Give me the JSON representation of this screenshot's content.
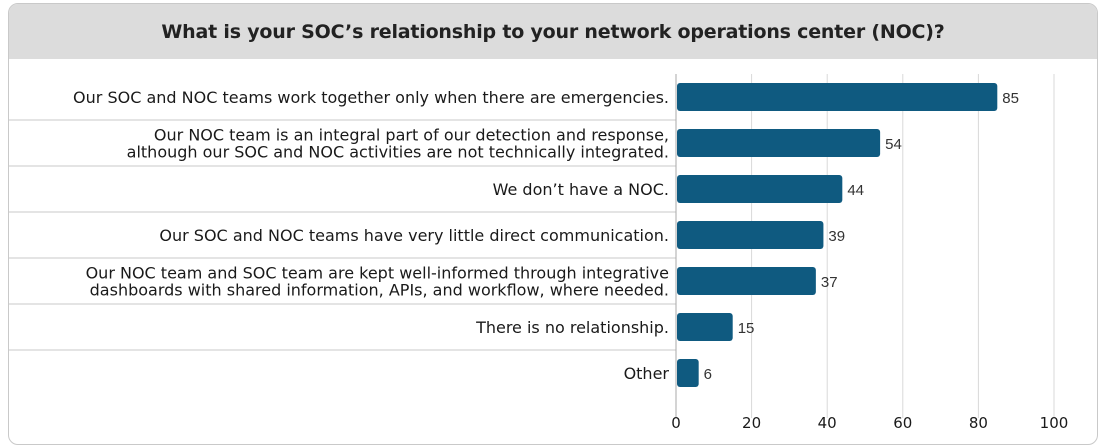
{
  "chart_data": {
    "type": "bar",
    "orientation": "horizontal",
    "title": "What is your SOC’s relationship to your network operations center (NOC)?",
    "categories": [
      [
        "Our SOC and NOC teams work together only when there are emergencies."
      ],
      [
        "Our NOC team is an integral part of our detection and response,",
        "although our SOC and NOC activities are not technically integrated."
      ],
      [
        "We don’t have a NOC."
      ],
      [
        "Our SOC and NOC teams have very little direct communication."
      ],
      [
        "Our NOC team and SOC team are kept well-informed through integrative",
        "dashboards with shared information, APIs, and workflow, where needed."
      ],
      [
        "There is no relationship."
      ],
      [
        "Other"
      ]
    ],
    "values": [
      85,
      54,
      44,
      39,
      37,
      15,
      6
    ],
    "value_labels": [
      "85",
      "54",
      "44",
      "39",
      "37",
      "15",
      "6"
    ],
    "xlim": [
      0,
      100
    ],
    "xticks": [
      0,
      20,
      40,
      60,
      80,
      100
    ],
    "xtick_labels": [
      "0",
      "20",
      "40",
      "60",
      "80",
      "100"
    ],
    "grid": "vertical",
    "colors": {
      "bar": "#0f5a80",
      "grid": "#d9d9d9",
      "separator": "#c8c8c8"
    }
  }
}
